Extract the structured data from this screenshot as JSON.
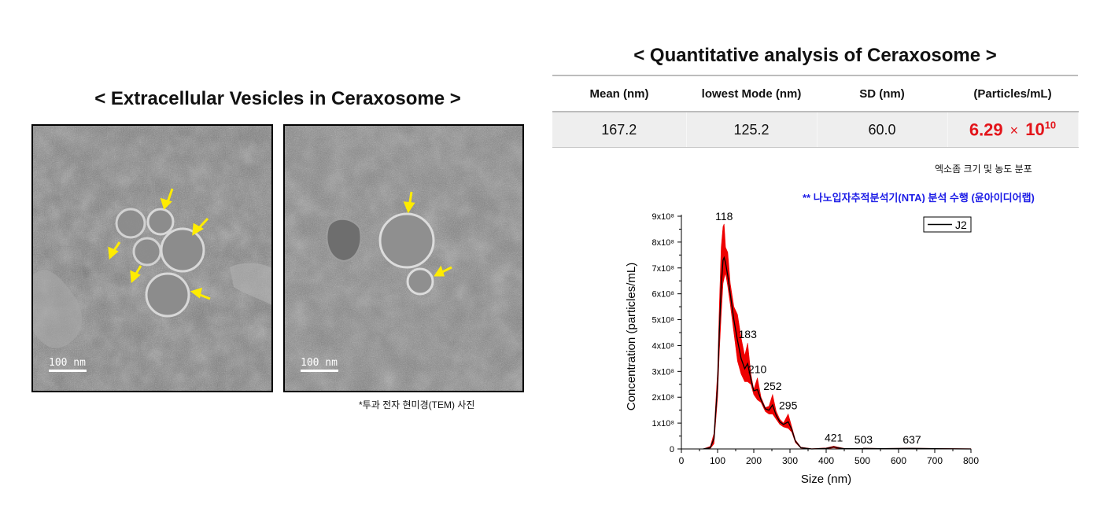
{
  "left": {
    "title": "< Extracellular Vesicles in Ceraxosome >",
    "images": [
      {
        "scale_label": "100 nm"
      },
      {
        "scale_label": "100 nm"
      }
    ],
    "caption": "*투과 전자 현미경(TEM) 사진",
    "arrow_color": "#ffec00"
  },
  "right": {
    "title": "< Quantitative analysis of Ceraxosome >",
    "table": {
      "headers": [
        "Mean (nm)",
        "lowest Mode (nm)",
        "SD (nm)",
        "(Particles/mL)"
      ],
      "values": [
        "167.2",
        "125.2",
        "60.0"
      ],
      "concentration": {
        "mantissa": "6.29",
        "times": "×",
        "base": "10",
        "exponent": "10"
      }
    },
    "note1": "엑소좀 크기 및 농도 분포",
    "note2": "** 나노입자추적분석기(NTA) 분석 수행 (윤아이디어랩)"
  },
  "chart_data": {
    "type": "line",
    "xlabel": "Size (nm)",
    "ylabel": "Concentration (particles/mL)",
    "xlim": [
      0,
      800
    ],
    "ylim": [
      0,
      9
    ],
    "xticks": [
      "0",
      "100",
      "200",
      "300",
      "400",
      "500",
      "600",
      "700",
      "800"
    ],
    "yticks": [
      "0",
      "1x10⁸",
      "2x10⁸",
      "3x10⁸",
      "4x10⁸",
      "5x10⁸",
      "6x10⁸",
      "7x10⁸",
      "8x10⁸",
      "9x10⁸"
    ],
    "y_unit": "1x10^8 particles/mL",
    "series": [
      {
        "name": "J2",
        "color": "#000000",
        "x": [
          60,
          80,
          90,
          100,
          105,
          110,
          115,
          118,
          122,
          128,
          135,
          145,
          155,
          165,
          175,
          183,
          192,
          200,
          210,
          220,
          232,
          242,
          252,
          262,
          272,
          282,
          295,
          305,
          315,
          330,
          360,
          400,
          415,
          421,
          430,
          450,
          500,
          503,
          550,
          637,
          700,
          800
        ],
        "y": [
          0,
          0.05,
          0.4,
          2.5,
          4.6,
          6.3,
          7.3,
          7.4,
          7.2,
          6.7,
          6.0,
          5.0,
          4.2,
          3.5,
          3.1,
          3.3,
          2.7,
          2.25,
          2.3,
          1.9,
          1.55,
          1.5,
          1.7,
          1.3,
          1.05,
          0.95,
          1.05,
          0.75,
          0.3,
          0.05,
          0,
          0.02,
          0.06,
          0.08,
          0.05,
          0.01,
          0.01,
          0.02,
          0.01,
          0.02,
          0.01,
          0.0
        ]
      }
    ],
    "error_band": {
      "color": "#ee0000",
      "x": [
        60,
        80,
        90,
        100,
        105,
        110,
        115,
        118,
        122,
        128,
        135,
        145,
        155,
        165,
        175,
        183,
        192,
        200,
        210,
        220,
        232,
        242,
        252,
        262,
        272,
        282,
        295,
        305,
        315,
        330,
        360,
        400,
        415,
        421,
        430,
        450,
        500,
        503,
        550,
        637,
        700,
        800
      ],
      "upper": [
        0,
        0.1,
        0.6,
        3.0,
        5.6,
        7.8,
        8.6,
        8.7,
        7.8,
        7.6,
        6.4,
        5.5,
        5.2,
        4.3,
        3.6,
        4.1,
        2.9,
        2.3,
        2.75,
        2.0,
        1.6,
        1.65,
        2.1,
        1.45,
        1.15,
        1.0,
        1.35,
        0.85,
        0.35,
        0.07,
        0.01,
        0.04,
        0.09,
        0.11,
        0.08,
        0.02,
        0.02,
        0.03,
        0.02,
        0.03,
        0.02,
        0.01
      ],
      "lower": [
        0,
        0.02,
        0.2,
        2.0,
        3.8,
        5.2,
        6.4,
        6.6,
        6.8,
        6.3,
        5.6,
        4.5,
        3.4,
        2.9,
        2.6,
        2.6,
        2.5,
        2.1,
        1.9,
        1.8,
        1.45,
        1.35,
        1.35,
        1.15,
        0.95,
        0.85,
        0.8,
        0.65,
        0.25,
        0.03,
        0,
        0,
        0.03,
        0.05,
        0.02,
        0,
        0,
        0.01,
        0,
        0.01,
        0,
        0
      ]
    },
    "peak_labels": [
      {
        "x": 118,
        "y": 8.7,
        "text": "118"
      },
      {
        "x": 183,
        "y": 4.1,
        "text": "183"
      },
      {
        "x": 210,
        "y": 2.75,
        "text": "210"
      },
      {
        "x": 252,
        "y": 2.1,
        "text": "252"
      },
      {
        "x": 295,
        "y": 1.35,
        "text": "295"
      },
      {
        "x": 421,
        "y": 0.11,
        "text": "421"
      },
      {
        "x": 503,
        "y": 0.03,
        "text": "503"
      },
      {
        "x": 637,
        "y": 0.03,
        "text": "637"
      }
    ],
    "legend": {
      "position": "top-right",
      "entries": [
        "J2"
      ]
    },
    "grid": false
  }
}
